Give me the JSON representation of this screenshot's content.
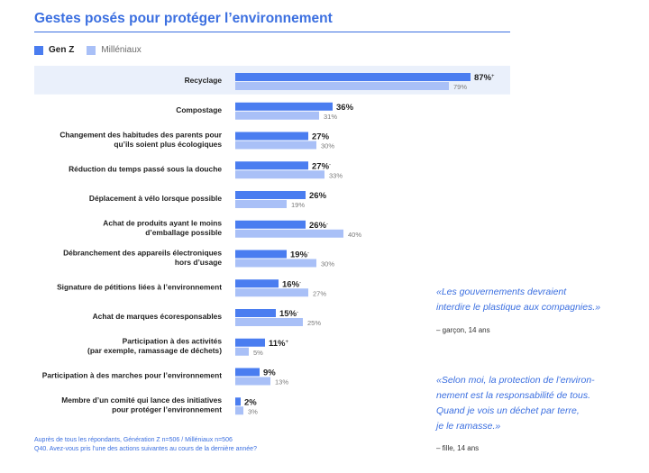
{
  "colors": {
    "genz": "#4a7df0",
    "millenials": "#a9c0f7",
    "accent": "#3b6fe0",
    "highlight": "#eaf0fb"
  },
  "chart_data": {
    "type": "bar",
    "title": "Gestes posés pour protéger l’environnement",
    "xlim": [
      0,
      90
    ],
    "categories": [
      "Recyclage",
      "Compostage",
      "Changement des habitudes des parents pour\nqu’ils soient plus écologiques",
      "Réduction du temps passé sous la douche",
      "Déplacement à vélo lorsque possible",
      "Achat de produits ayant le moins\nd’emballage possible",
      "Débranchement des appareils électroniques\nhors d’usage",
      "Signature de pétitions liées à l’environnement",
      "Achat de marques écoresponsables",
      "Participation à des activités\n(par exemple, ramassage de déchets)",
      "Participation à des marches pour l’environnement",
      "Membre d’un comité qui lance des initiatives\npour protéger l’environnement"
    ],
    "series": [
      {
        "name": "Gen Z",
        "values": [
          87,
          36,
          27,
          27,
          26,
          26,
          19,
          16,
          15,
          11,
          9,
          2
        ],
        "labels": [
          "87%",
          "36%",
          "27%",
          "27%",
          "26%",
          "26%",
          "19%",
          "16%",
          "15%",
          "11%",
          "9%",
          "2%"
        ],
        "markers": [
          "+",
          "",
          "",
          "-",
          "",
          "-",
          "-",
          "-",
          "-",
          "+",
          "",
          ""
        ]
      },
      {
        "name": "Milléniaux",
        "values": [
          79,
          31,
          30,
          33,
          19,
          40,
          30,
          27,
          25,
          5,
          13,
          3
        ],
        "labels": [
          "79%",
          "31%",
          "30%",
          "33%",
          "19%",
          "40%",
          "30%",
          "27%",
          "25%",
          "5%",
          "13%",
          "3%"
        ]
      }
    ],
    "highlight_category": "Recyclage",
    "legend": "top-left"
  },
  "quotes": [
    {
      "text": "«Les gouvernements devraient\ninterdire le plastique aux compagnies.»",
      "author": "– garçon, 14 ans"
    },
    {
      "text": "«Selon moi, la protection de l’environ-\nnement est la responsabilité de tous.\nQuand je vois un déchet par terre,\nje le ramasse.»",
      "author": "– fille, 14 ans"
    }
  ],
  "footnotes": [
    "Auprès de tous les répondants, Génération Z n=506 / Milléniaux n=506",
    "Q40. Avez-vous pris l’une des actions suivantes au cours de la dernière année?"
  ]
}
